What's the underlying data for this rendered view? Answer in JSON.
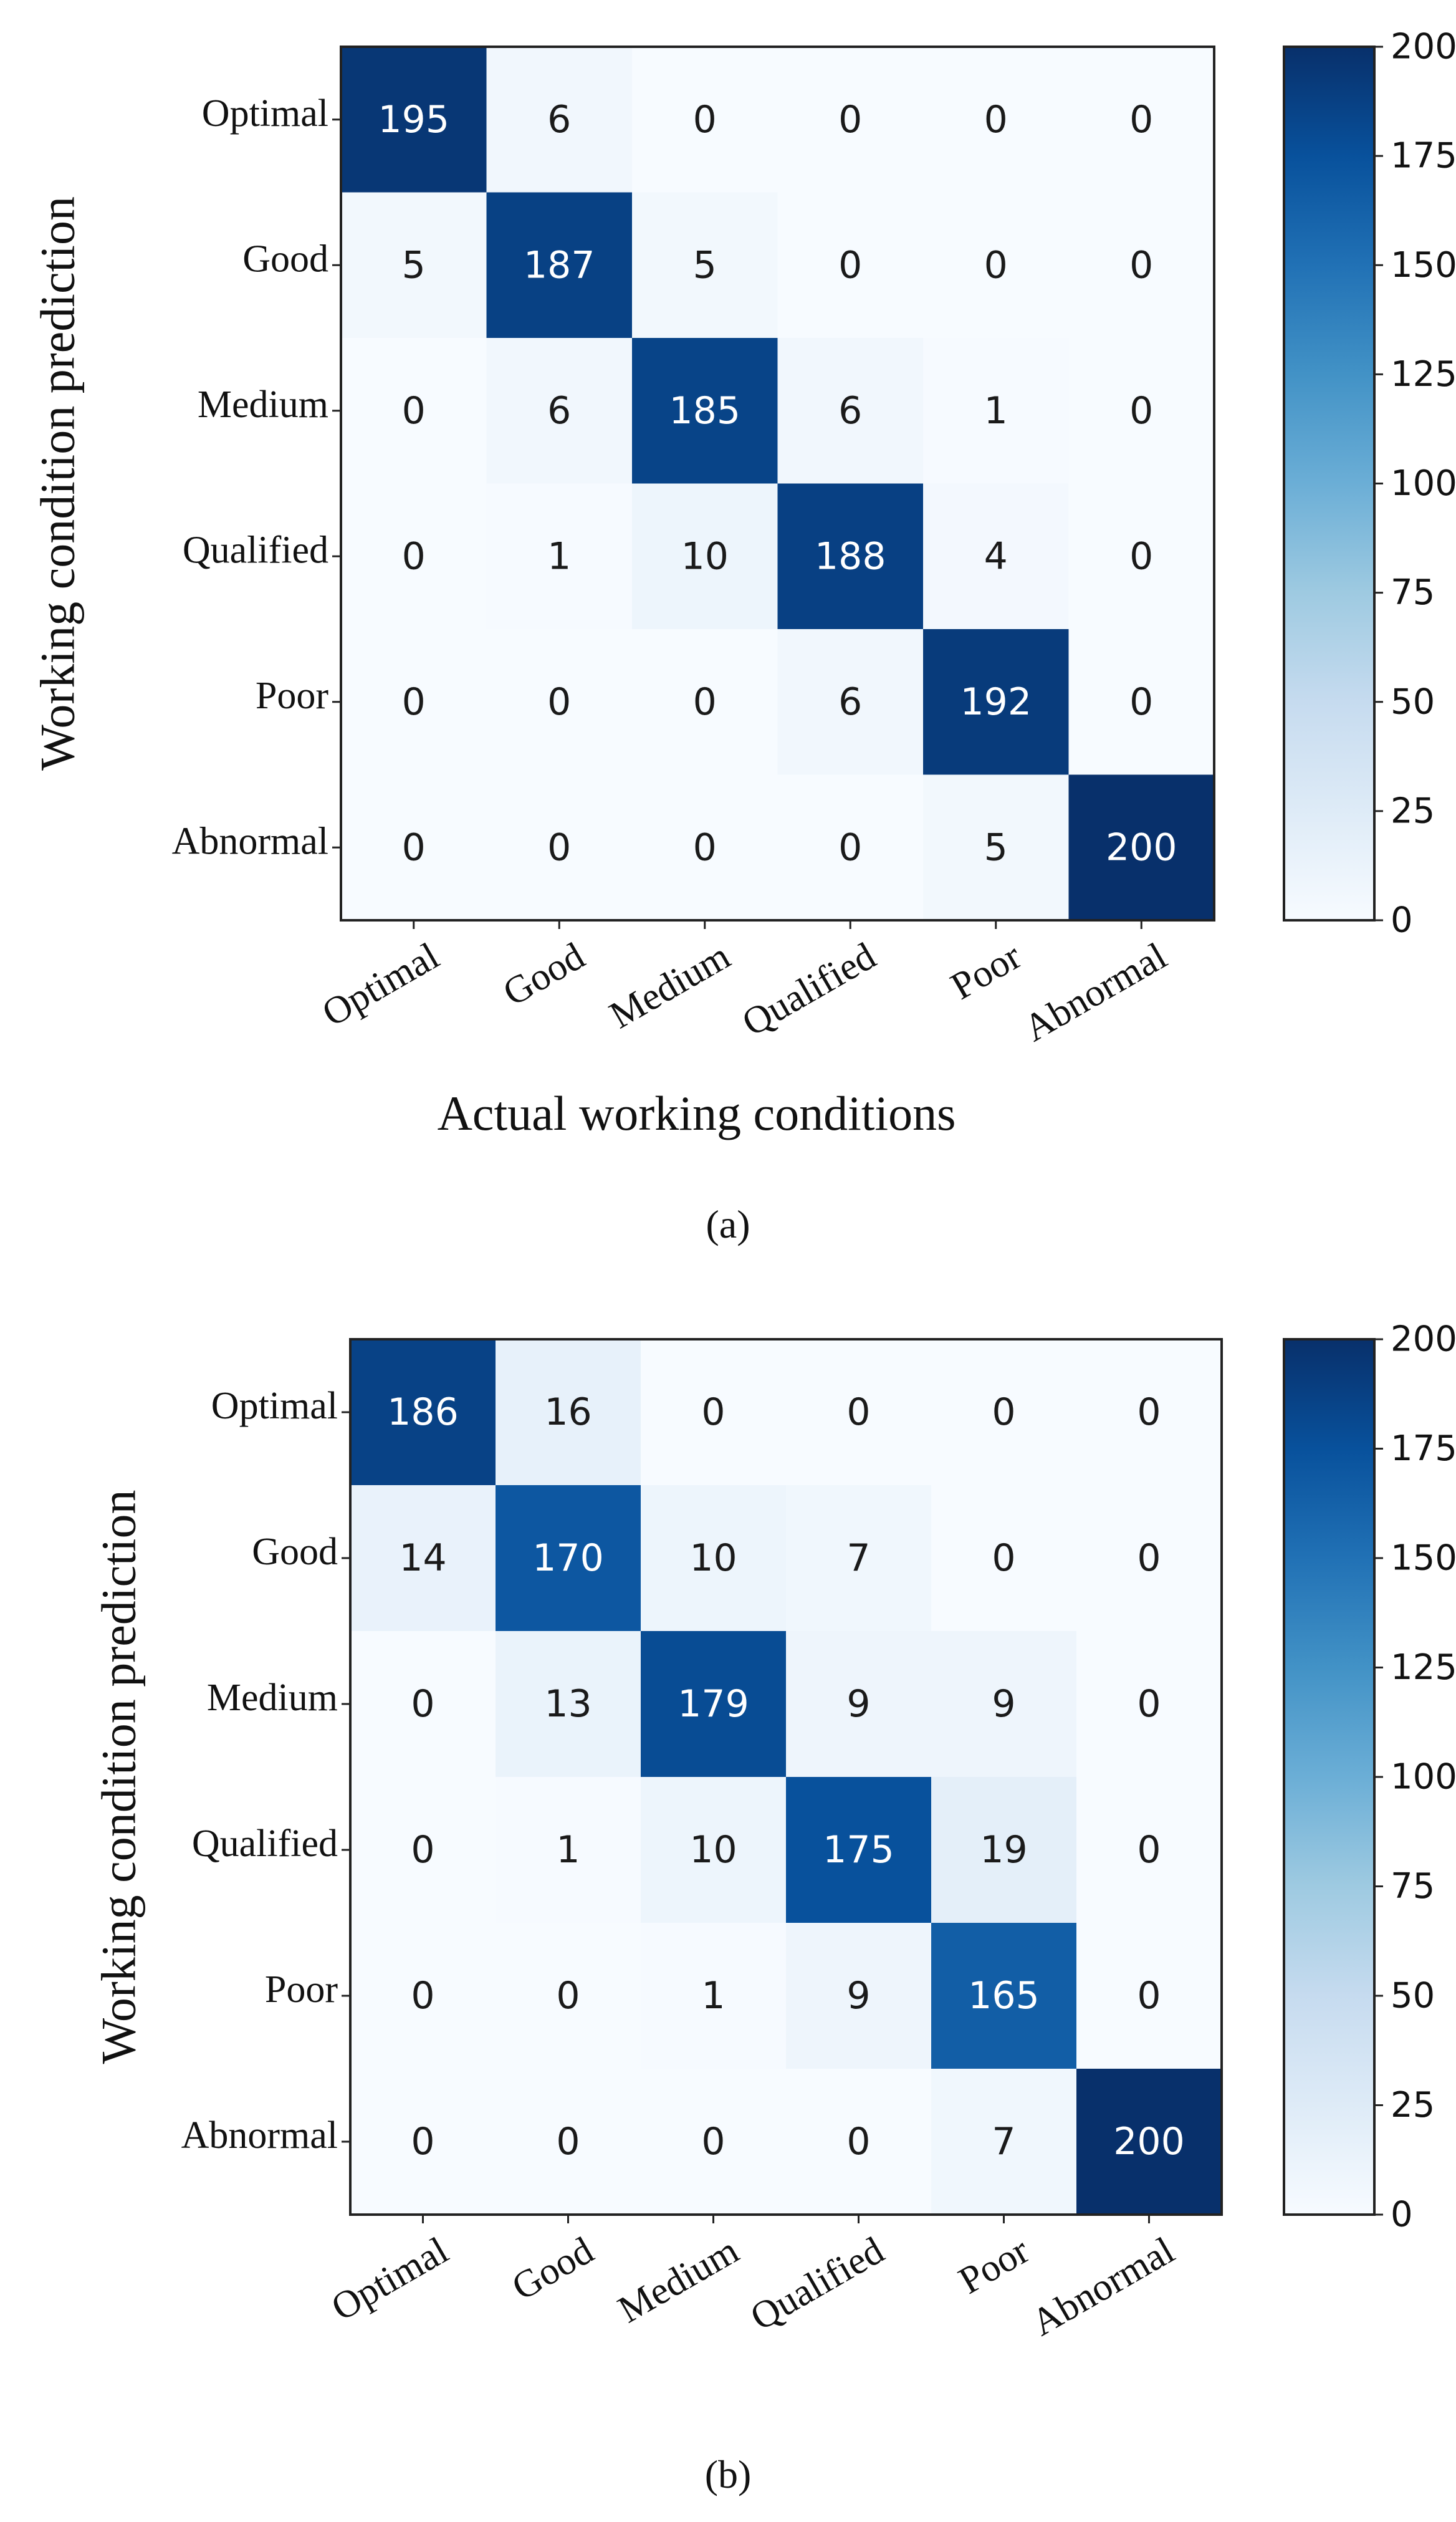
{
  "chart_data": [
    {
      "type": "heatmap",
      "caption": "(a)",
      "xlabel": "Actual working conditions",
      "ylabel": "Working condition prediction",
      "x_categories": [
        "Optimal",
        "Good",
        "Medium",
        "Qualified",
        "Poor",
        "Abnormal"
      ],
      "y_categories": [
        "Optimal",
        "Good",
        "Medium",
        "Qualified",
        "Poor",
        "Abnormal"
      ],
      "matrix": [
        [
          195,
          6,
          0,
          0,
          0,
          0
        ],
        [
          5,
          187,
          5,
          0,
          0,
          0
        ],
        [
          0,
          6,
          185,
          6,
          1,
          0
        ],
        [
          0,
          1,
          10,
          188,
          4,
          0
        ],
        [
          0,
          0,
          0,
          6,
          192,
          0
        ],
        [
          0,
          0,
          0,
          0,
          5,
          200
        ]
      ],
      "colorbar": {
        "min": 0,
        "max": 200,
        "ticks": [
          0,
          25,
          50,
          75,
          100,
          125,
          150,
          175,
          200
        ],
        "colormap": "Blues"
      }
    },
    {
      "type": "heatmap",
      "caption": "(b)",
      "xlabel": "",
      "ylabel": "Working condition prediction",
      "x_categories": [
        "Optimal",
        "Good",
        "Medium",
        "Qualified",
        "Poor",
        "Abnormal"
      ],
      "y_categories": [
        "Optimal",
        "Good",
        "Medium",
        "Qualified",
        "Poor",
        "Abnormal"
      ],
      "matrix": [
        [
          186,
          16,
          0,
          0,
          0,
          0
        ],
        [
          14,
          170,
          10,
          7,
          0,
          0
        ],
        [
          0,
          13,
          179,
          9,
          9,
          0
        ],
        [
          0,
          1,
          10,
          175,
          19,
          0
        ],
        [
          0,
          0,
          1,
          9,
          165,
          0
        ],
        [
          0,
          0,
          0,
          0,
          7,
          200
        ]
      ],
      "colorbar": {
        "min": 0,
        "max": 200,
        "ticks": [
          0,
          25,
          50,
          75,
          100,
          125,
          150,
          175,
          200
        ],
        "colormap": "Blues"
      }
    }
  ]
}
